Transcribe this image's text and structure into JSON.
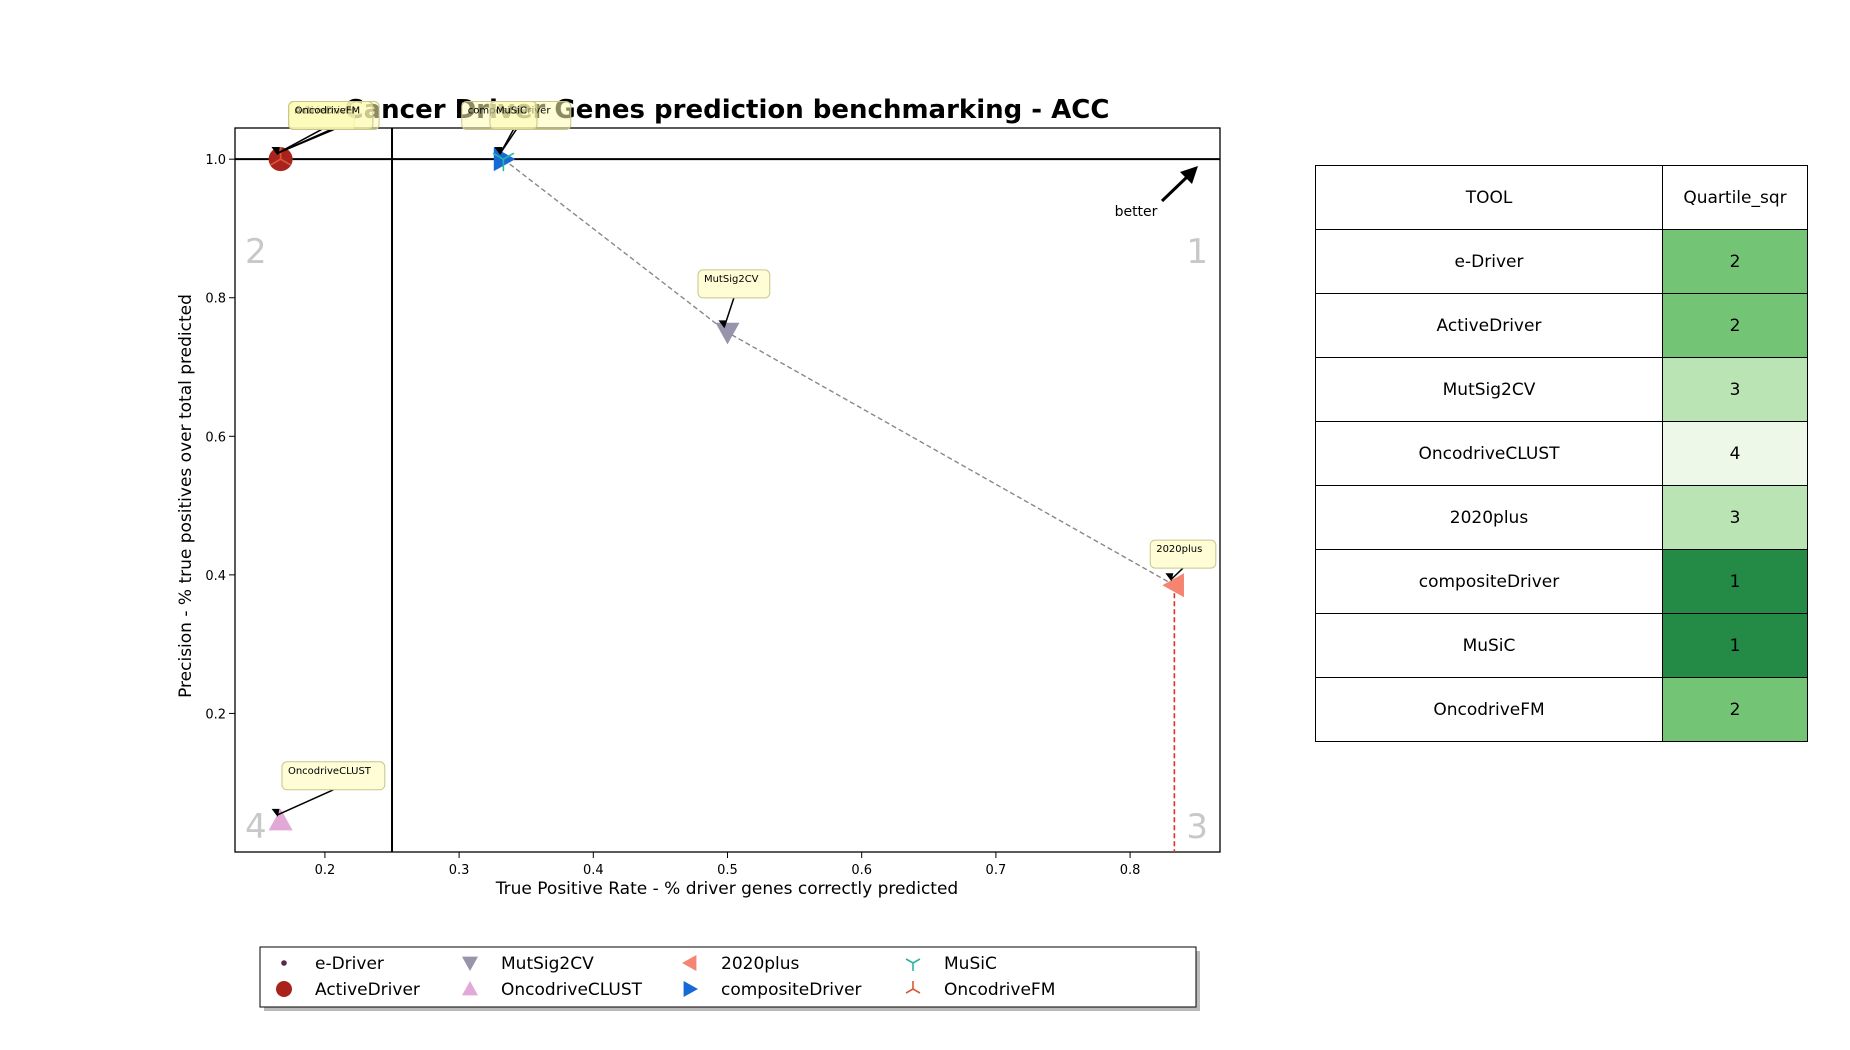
{
  "chart_data": {
    "type": "scatter",
    "title": "Cancer Driver Genes prediction benchmarking - ACC",
    "xlabel": "True Positive Rate - % driver genes correctly predicted",
    "ylabel": "Precision - % true positives over total predicted",
    "xlim": [
      0.133,
      0.867
    ],
    "ylim": [
      0.0,
      1.045
    ],
    "x_ticks": [
      0.2,
      0.3,
      0.4,
      0.5,
      0.6,
      0.7,
      0.8
    ],
    "y_ticks": [
      0.2,
      0.4,
      0.6,
      0.8,
      1.0
    ],
    "grid": false,
    "quartile_lines": {
      "x": 0.25,
      "y": 1.0
    },
    "quadrant_labels": [
      "1",
      "2",
      "3",
      "4"
    ],
    "better_label": "better",
    "series": [
      {
        "name": "e-Driver",
        "x": 0.167,
        "y": 1.0,
        "color": "#5a2a4a",
        "marker": "dot"
      },
      {
        "name": "ActiveDriver",
        "x": 0.167,
        "y": 1.0,
        "color": "#a9231c",
        "marker": "circle"
      },
      {
        "name": "MutSig2CV",
        "x": 0.5,
        "y": 0.75,
        "color": "#9894ab",
        "marker": "triangle-down"
      },
      {
        "name": "OncodriveCLUST",
        "x": 0.167,
        "y": 0.045,
        "color": "#e2a8d6",
        "marker": "triangle-up"
      },
      {
        "name": "2020plus",
        "x": 0.833,
        "y": 0.385,
        "color": "#f58470",
        "marker": "triangle-left"
      },
      {
        "name": "compositeDriver",
        "x": 0.333,
        "y": 1.0,
        "color": "#1769d6",
        "marker": "triangle-right"
      },
      {
        "name": "MuSiC",
        "x": 0.333,
        "y": 1.0,
        "color": "#2bb5a0",
        "marker": "tri-down"
      },
      {
        "name": "OncodriveFM",
        "x": 0.167,
        "y": 1.0,
        "color": "#d8583a",
        "marker": "tri-up"
      }
    ],
    "pareto_frontier": [
      [
        0.333,
        1.0
      ],
      [
        0.5,
        0.75
      ],
      [
        0.833,
        0.385
      ]
    ],
    "annotations": [
      {
        "text": "e-Driver",
        "tx": 0.173,
        "ty": 1.063
      },
      {
        "text": "ActiveDriver",
        "tx": 0.173,
        "ty": 1.063
      },
      {
        "text": "OncodriveFM",
        "tx": 0.173,
        "ty": 1.063
      },
      {
        "text": "compositeDriver",
        "tx": 0.302,
        "ty": 1.063
      },
      {
        "text": "MuSiC",
        "tx": 0.323,
        "ty": 1.063
      },
      {
        "text": "MutSig2CV",
        "tx": 0.478,
        "ty": 0.82
      },
      {
        "text": "OncodriveCLUST",
        "tx": 0.168,
        "ty": 0.11
      },
      {
        "text": "2020plus",
        "tx": 0.815,
        "ty": 0.43
      }
    ],
    "legend": {
      "placement": "bottom",
      "columns": 5
    },
    "table": {
      "headers": [
        "TOOL",
        "Quartile_sqr"
      ],
      "rows": [
        {
          "tool": "e-Driver",
          "quartile": "2",
          "color": "#74c476"
        },
        {
          "tool": "ActiveDriver",
          "quartile": "2",
          "color": "#74c476"
        },
        {
          "tool": "MutSig2CV",
          "quartile": "3",
          "color": "#bae4b3"
        },
        {
          "tool": "OncodriveCLUST",
          "quartile": "4",
          "color": "#edf8e9"
        },
        {
          "tool": "2020plus",
          "quartile": "3",
          "color": "#bae4b3"
        },
        {
          "tool": "compositeDriver",
          "quartile": "1",
          "color": "#238b45"
        },
        {
          "tool": "MuSiC",
          "quartile": "1",
          "color": "#238b45"
        },
        {
          "tool": "OncodriveFM",
          "quartile": "2",
          "color": "#74c476"
        }
      ]
    }
  }
}
